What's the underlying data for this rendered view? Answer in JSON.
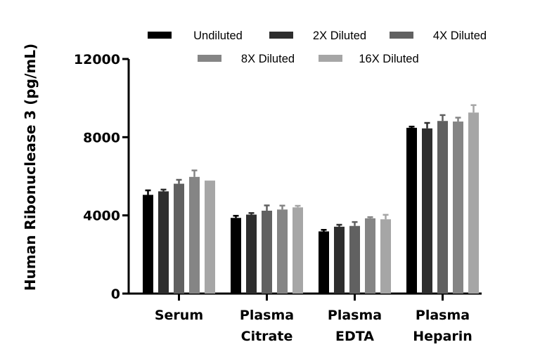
{
  "chart_data": {
    "type": "bar",
    "ylabel": "Human Ribonuclease 3 (pg/mL)",
    "xlabel": "",
    "ylim": [
      0,
      12000
    ],
    "yticks": [
      0,
      4000,
      8000,
      12000
    ],
    "ytick_labels": [
      "0",
      "4000",
      "8000",
      "12000"
    ],
    "grid": false,
    "legend_position": "top",
    "categories": [
      [
        "Serum"
      ],
      [
        "Plasma",
        "Citrate"
      ],
      [
        "Plasma",
        "EDTA"
      ],
      [
        "Plasma",
        "Heparin"
      ]
    ],
    "series": [
      {
        "name": "Undiluted",
        "color": "#000000",
        "values": [
          5050,
          3870,
          3180,
          8480
        ],
        "errors": [
          230,
          110,
          80,
          60
        ]
      },
      {
        "name": "2X Diluted",
        "color": "#2e2e2e",
        "values": [
          5230,
          4040,
          3420,
          8450
        ],
        "errors": [
          90,
          80,
          100,
          280
        ]
      },
      {
        "name": "4X Diluted",
        "color": "#616161",
        "values": [
          5620,
          4240,
          3460,
          8830
        ],
        "errors": [
          200,
          270,
          200,
          300
        ]
      },
      {
        "name": "8X Diluted",
        "color": "#858585",
        "values": [
          5970,
          4300,
          3850,
          8800
        ],
        "errors": [
          330,
          200,
          60,
          200
        ]
      },
      {
        "name": "16X Diluted",
        "color": "#a6a6a6",
        "values": [
          5780,
          4410,
          3800,
          9260
        ],
        "errors": [
          0,
          80,
          230,
          380
        ]
      }
    ]
  }
}
